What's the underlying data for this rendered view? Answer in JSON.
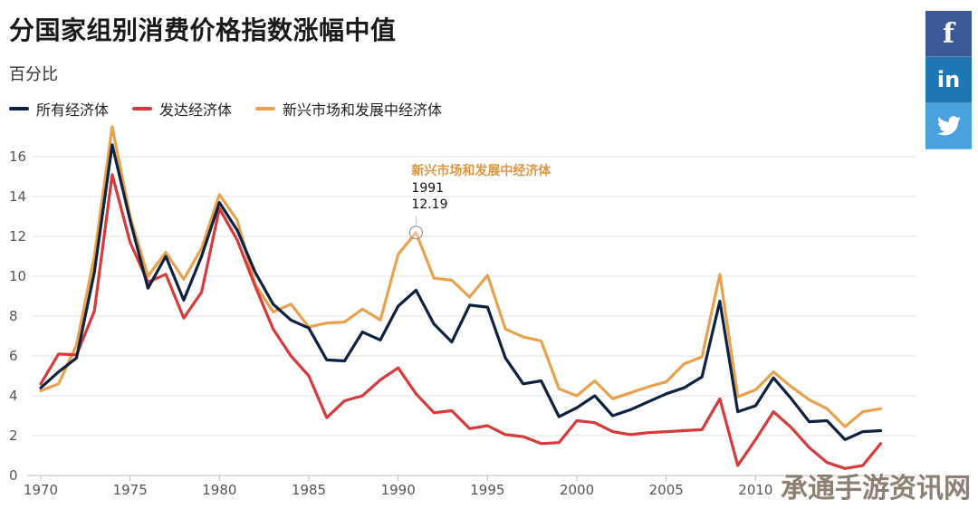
{
  "header": {
    "title": "分国家组别消费价格指数涨幅中值",
    "subtitle": "百分比"
  },
  "share": {
    "facebook_label": "f",
    "linkedin_label": "in"
  },
  "watermark": "承通手游资讯网",
  "colors": {
    "all": "#0d2240",
    "developed": "#d63a3a",
    "emerging": "#e8a24e",
    "grid": "#e3e3e3",
    "axis": "#bbbbbb"
  },
  "tooltip": {
    "series": "新兴市场和发展中经济体",
    "x": "1991",
    "y": "12.19"
  },
  "chart_data": {
    "type": "line",
    "title": "分国家组别消费价格指数涨幅中值",
    "subtitle": "百分比",
    "xlabel": "",
    "ylabel": "",
    "xlim": [
      1970,
      2019
    ],
    "ylim": [
      0,
      17.5
    ],
    "x_ticks": [
      "1970",
      "1975",
      "1980",
      "1985",
      "1990",
      "1995",
      "2000",
      "2005",
      "2010"
    ],
    "y_ticks": [
      "0",
      "2",
      "4",
      "6",
      "8",
      "10",
      "12",
      "14",
      "16"
    ],
    "grid": true,
    "legend_position": "top-left",
    "x": [
      1970,
      1971,
      1972,
      1973,
      1974,
      1975,
      1976,
      1977,
      1978,
      1979,
      1980,
      1981,
      1982,
      1983,
      1984,
      1985,
      1986,
      1987,
      1988,
      1989,
      1990,
      1991,
      1992,
      1993,
      1994,
      1995,
      1996,
      1997,
      1998,
      1999,
      2000,
      2001,
      2002,
      2003,
      2004,
      2005,
      2006,
      2007,
      2008,
      2009,
      2010,
      2011,
      2012,
      2013,
      2014,
      2015,
      2016,
      2017
    ],
    "series": [
      {
        "name": "所有经济体",
        "values": [
          4.4,
          5.2,
          5.9,
          10.2,
          16.6,
          12.8,
          9.4,
          11.0,
          8.8,
          11.0,
          13.7,
          12.3,
          10.2,
          8.6,
          7.8,
          7.4,
          5.8,
          5.75,
          7.2,
          6.8,
          8.5,
          9.3,
          7.6,
          6.7,
          8.55,
          8.45,
          5.9,
          4.6,
          4.75,
          2.95,
          3.4,
          4.0,
          3.0,
          3.3,
          3.7,
          4.1,
          4.4,
          4.95,
          8.75,
          3.2,
          3.5,
          4.9,
          3.85,
          2.7,
          2.75,
          1.8,
          2.2,
          2.25
        ]
      },
      {
        "name": "发达经济体",
        "values": [
          4.6,
          6.1,
          6.05,
          8.25,
          15.1,
          11.7,
          9.7,
          10.1,
          7.9,
          9.2,
          13.4,
          11.8,
          9.5,
          7.35,
          6.0,
          5.0,
          2.9,
          3.75,
          4.0,
          4.8,
          5.4,
          4.1,
          3.15,
          3.25,
          2.35,
          2.5,
          2.05,
          1.95,
          1.6,
          1.65,
          2.75,
          2.65,
          2.2,
          2.05,
          2.15,
          2.2,
          2.25,
          2.3,
          3.85,
          0.5,
          1.8,
          3.2,
          2.4,
          1.4,
          0.65,
          0.35,
          0.5,
          1.6
        ]
      },
      {
        "name": "新兴市场和发展中经济体",
        "values": [
          4.25,
          4.6,
          6.55,
          11.0,
          17.5,
          13.0,
          10.0,
          11.2,
          9.85,
          11.4,
          14.1,
          12.8,
          9.6,
          8.2,
          8.6,
          7.45,
          7.65,
          7.7,
          8.35,
          7.8,
          11.1,
          12.19,
          9.9,
          9.8,
          8.95,
          10.05,
          7.35,
          6.95,
          6.75,
          4.35,
          4.0,
          4.75,
          3.85,
          4.15,
          4.45,
          4.7,
          5.6,
          5.95,
          10.1,
          3.95,
          4.3,
          5.2,
          4.45,
          3.8,
          3.35,
          2.45,
          3.2,
          3.35
        ]
      }
    ],
    "annotation": {
      "series": "新兴市场和发展中经济体",
      "x": 1991,
      "y": 12.19
    }
  }
}
